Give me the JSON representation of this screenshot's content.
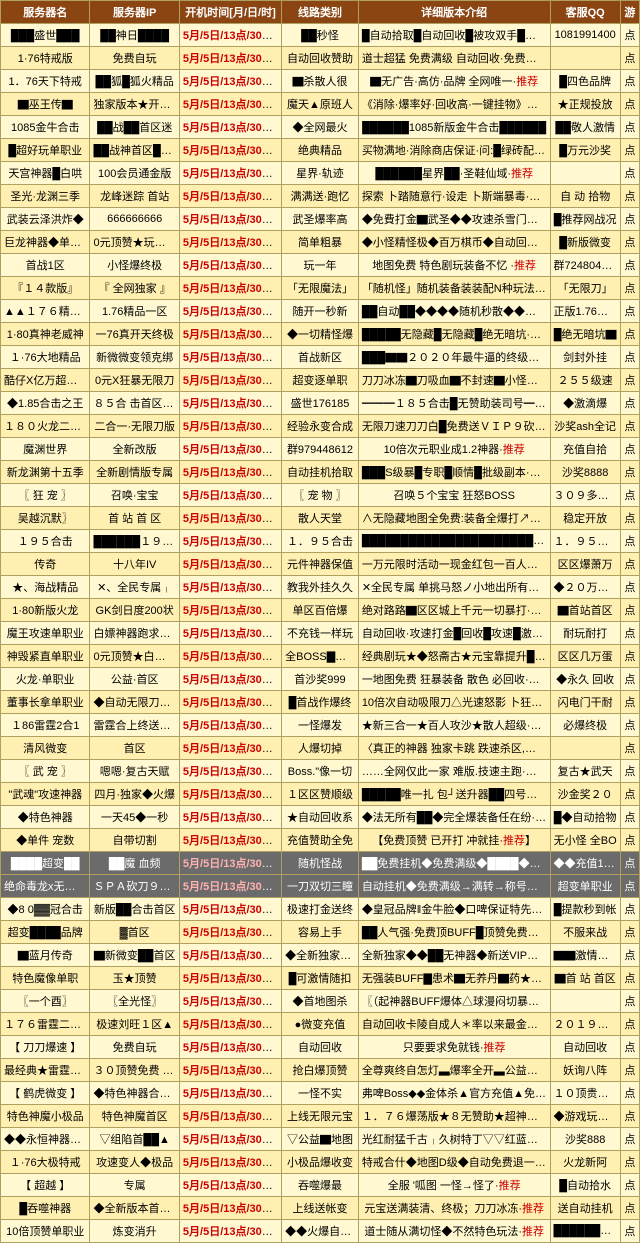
{
  "headers": [
    "服务器名",
    "服务器IP",
    "开机时间[月/日/时]",
    "线路类别",
    "详细版本介绍",
    "客服QQ",
    "游"
  ],
  "col_widths": [
    "14%",
    "14%",
    "16%",
    "12%",
    "30%",
    "11%",
    "3%"
  ],
  "colors": {
    "header_bg": "#8b4513",
    "header_fg": "#ffffff",
    "row_odd": "#fff8d0",
    "row_even": "#ffefb0",
    "border": "#b0a060",
    "time": "#cc0000",
    "recommend": "#cc0000",
    "hl_bg": "#6b6b6b",
    "hl_fg": "#ffffff"
  },
  "rows": [
    {
      "c": [
        "███盛世███",
        "██神日████",
        "5月/5日/13点/30分开放",
        "██秒怪",
        "█自动拾取█自动回收█被攻双手█白嫖·推荐",
        "1081991400",
        "点"
      ]
    },
    {
      "c": [
        "1·76特戒版",
        "免费自玩",
        "5月/5日/13点/30分开放",
        "自动回收赞助",
        "道士超猛 免费满级 自动回收·免费毒·推荐",
        "",
        "点"
      ]
    },
    {
      "c": [
        "1．76天下特戒",
        "██狐█狐火精品",
        "5月/5日/13点/30分开放",
        "▇杀散人很",
        "▇无广告·高仿·品牌 全网唯一·推荐",
        "█四色品牌",
        "点"
      ]
    },
    {
      "c": [
        "▇巫王传▇",
        "独家版本★开神器",
        "5月/5日/13点/30分开放",
        "魔天▲原班人",
        "《消除·爆率好·回收高·一键挂物》推荐",
        "★正规投放",
        "点"
      ]
    },
    {
      "c": [
        "1085金牛合击",
        "██战██首区迷",
        "5月/5日/13点/30分开放",
        "◆全网最火",
        "██████1085新版金牛合击██████",
        "██敬人激情",
        "点"
      ]
    },
    {
      "c": [
        "█超好玩单职业",
        "██战神首区████",
        "5月/5日/13点/30分开放",
        "绝典精品",
        "买物满地·消除商店保证·问:█绿砖配´推荐",
        "█万元沙奖",
        "点"
      ]
    },
    {
      "c": [
        "天宫神器█白哄",
        "100会员通金版",
        "5月/5日/13点/30分开放",
        "星界·轨迹",
        "██████星界██·圣鞋仙域·推荐",
        "",
        "点"
      ]
    },
    {
      "c": [
        "圣光·龙渊三季",
        "龙峰迷踪 首站",
        "5月/5日/13点/30分开放",
        "满满送·跑忆",
        "探索 卜踏随意行·设走 卜斯端暴毒·推荐",
        "自 动 拾物",
        "点"
      ]
    },
    {
      "c": [
        "武装云泽洪炸◆",
        "666666666",
        "5月/5日/13点/30分开放",
        "武圣爆率高",
        "◆免費打金▇武圣◆◆攻速杀雪门斗▲推荐",
        "█推荐网战况",
        "点"
      ]
    },
    {
      "c": [
        "巨龙神器◆单职业",
        "0元顶赞★玩全服",
        "5月/5日/13点/30分开放",
        "简单粗暴",
        "◆小怪精怪极◆百万棋币◆自动回收◆自助·推荐",
        "█新版微变",
        "点"
      ]
    },
    {
      "c": [
        "首战1区",
        "小怪爆终极",
        "5月/5日/13点/30分开放",
        "玩一年",
        "地图免费 特色剧玩装备不忆 ·推荐",
        "群724804421",
        "点"
      ]
    },
    {
      "c": [
        "『１４款版』",
        "『 全网独家 』",
        "5月/5日/13点/30分开放",
        "「无限魔法」",
        "「随机怪」随机装备装装配N种玩法·推荐",
        "「无限刀」",
        "点"
      ]
    },
    {
      "c": [
        "▲▲１７６精品▲",
        "1.76精品一区",
        "5月/5日/13点/30分开放",
        "随开一秒新",
        "██自动██◆◆◆◆随机秒散◆◆◆·推荐",
        "正版1.76精品",
        "点"
      ]
    },
    {
      "c": [
        "1·80真神老威神",
        "一76真开天终极",
        "5月/5日/13点/30分开放",
        "◆一切精怪爆",
        "█████无隐藏█无隐藏█绝无暗坑·推荐",
        "█绝无暗坑▇",
        "点"
      ]
    },
    {
      "c": [
        "１·76大地精品",
        "新微微变领克绑",
        "5月/5日/13点/30分开放",
        "首战新区",
        "███▇▇２０２０年最牛逼的终级微变█████",
        "剑封外挂",
        "点"
      ]
    },
    {
      "c": [
        "酷仔X亿万超变万",
        "0元X狂暴无限刀",
        "5月/5日/13点/30分开放",
        "超变逐单职",
        "刀刀冰冻▇刀吸血▇不封速▇小怪爆终极·推荐",
        "２５５级速",
        "点"
      ]
    },
    {
      "c": [
        "◆1.85合击之王",
        "８５合 击首区◆◆",
        "5月/5日/13点/30分开放",
        "盛世176185",
        "━━━１８５合击█无赞助装司号━推荐",
        "◆激滴爆",
        "点"
      ]
    },
    {
      "c": [
        "１８０火龙二合一",
        "二合一·无限刀版",
        "5月/5日/13点/30分开放",
        "经验永变合成",
        "无限刀速刀刀白█免费送ＶＩＰ９砍怪·推荐",
        "沙奖ash全记",
        "点"
      ]
    },
    {
      "c": [
        "魔渊世界",
        "全新改版",
        "5月/5日/13点/30分开放",
        "群979448612",
        "10倍次元职业成1.2神器·推荐",
        "充值自拾",
        "点"
      ]
    },
    {
      "c": [
        "新龙渊第十五季",
        "全新剧情版专属",
        "5月/5日/13点/30分开放",
        "自动挂机拾取",
        "███S级暴█专职█顺情█批级副本·推荐",
        "沙奖8888",
        "点"
      ]
    },
    {
      "c": [
        "〖 狂 宠 〗",
        "召唤·宝宝",
        "5月/5日/13点/30分开放",
        "〖 宠 物 〗",
        "召唤５个宝宝 狂怒BOSS",
        "３０９多种宝",
        "点"
      ]
    },
    {
      "c": [
        "吴越沉默〗",
        "首 站 首 区",
        "5月/5日/13点/30分开放",
        "散人天堂",
        "∧无隐藏地图全免费:装备全爆打↗推荐",
        "稳定开放",
        "点"
      ]
    },
    {
      "c": [
        "１９５合击",
        "██████１９５合击",
        "5月/5日/13点/30分开放",
        "１．９５合击",
        "██████████████████████████████",
        "１．９５合击",
        "点"
      ]
    },
    {
      "c": [
        "传奇",
        "十八年IV",
        "5月/5日/13点/30分开放",
        "元件神器保值",
        "一万元限时活动一现金红包一百人拿斗┘推荐",
        "区区爆萧万",
        "点"
      ]
    },
    {
      "c": [
        "★、海战精品",
        "✕、全民专属╷",
        "5月/5日/13点/30分开放",
        "教我外挂久久",
        "✕全民专属 单挑马怒ノ小地出所有★推荐",
        "◆２０万限时",
        "点"
      ]
    },
    {
      "c": [
        "1·80新版火龙",
        "GK剑日度200状",
        "5月/5日/13点/30分开放",
        "单区百倍爆",
        "绝对路路▇区区城上千元一切暴打·推荐",
        "▇首站首区",
        "点"
      ]
    },
    {
      "c": [
        "魔王攻速单职业",
        "白嫖神器跑求体点",
        "5月/5日/13点/30分开放",
        "不充钱一样玩",
        "自动回收·攻速打金█回收█攻速█激情·推荐",
        "耐玩耐打",
        "点"
      ]
    },
    {
      "c": [
        "神毁紧直单职业",
        "0元顶赞★白哄版",
        "5月/5日/13点/30分开放",
        "全BOSS▇无小",
        "经典剧玩★◆怒斋古★元宝靠提升█散人爆终·推荐",
        "区区几万蛋",
        "点"
      ]
    },
    {
      "c": [
        "火龙·单职业",
        "公益·首区",
        "5月/5日/13点/30分开放",
        "首沙奖999",
        "一地图免费 狂暴装备 散色 必回收·推荐",
        "◆永久 回收",
        "点"
      ]
    },
    {
      "c": [
        "董事长拿单职业",
        "◆自动无限刀█速",
        "5月/5日/13点/30分开放",
        "█首战作爆终",
        "10倍次自动吸限刀△光速怒影 卜狂扛╷推荐",
        "闪电门干耐",
        "点"
      ]
    },
    {
      "c": [
        "１86雷霆2合1",
        "雷霆合上终送赞助",
        "5月/5日/13点/30分开放",
        "一怪爆发",
        "★新三合一★百人攻沙★散人超级·推荐",
        "必爆终极",
        "点"
      ]
    },
    {
      "c": [
        "清风微变",
        "首区",
        "5月/5日/13点/30分开放",
        "人爆切掉",
        "〈真正的神器 独家卡跳 跌速杀区,人气爆满〉",
        "",
        "点"
      ]
    },
    {
      "c": [
        "〖 武 宠 〗",
        "嗯嗯·复古天赋",
        "5月/5日/13点/30分开放",
        "Boss.\"像一切",
        "……全网仅此一家 难版.技速主跑·推荐",
        "复古★武天",
        "点"
      ]
    },
    {
      "c": [
        "\"武魂\"攻速神器",
        "四月·独家◆火爆",
        "5月/5日/13点/30分开放",
        "１区区赞顺级",
        "█████唯一扎 包┘送升器██四号四号推荐",
        "沙金奖２０",
        "点"
      ]
    },
    {
      "c": [
        "◆特色神器",
        "一天45◆一秒",
        "5月/5日/13点/30分开放",
        "★自动回收系",
        "◆法无所有██◆完全爆装备任在纷··推荐",
        "█◆自动拾物",
        "点"
      ]
    },
    {
      "c": [
        "◆单件 宠数",
        "自带切割",
        "5月/5日/13点/30分开放",
        "充值赞助全免",
        "【免费顶赞 已开打 冲就挂·推荐】",
        "无小怪 全BO",
        "点"
      ]
    },
    {
      "c": [
        "████超变██",
        "██魔 血频",
        "5月/5日/13点/30分开放",
        "随机怪战",
        "██免费挂机◆免费满级◆████◆特色宠物██─推荐",
        "◆◆充值18５",
        "点"
      ],
      "hl": true
    },
    {
      "c": [
        "绝命毒龙x无限刀",
        "ＳＰＡ砍刀９ｘ９",
        "5月/5日/13点/30分开放",
        "一刀双切三瞳",
        "自动挂机◆免费满级→满转→称号→天陡推荐",
        "超变单职业",
        "点"
      ],
      "hl": true
    },
    {
      "c": [
        "◆8 0▓▓冠合击",
        "新版██合击首区",
        "5月/5日/13点/30分开放",
        "极速打金送终",
        "◆皇冠品牌‖金牛脸◆口啤保证特先开地·推荐",
        "█提款秒到帐",
        "点"
      ]
    },
    {
      "c": [
        "超变████品牌",
        "▓首区",
        "5月/5日/13点/30分开放",
        "容易上手",
        "██人气强·免费顶BUFF█顶赞免费Rq◆推荐",
        "不服来战",
        "点"
      ]
    },
    {
      "c": [
        "▇蓝月传奇",
        "▇新微变██首区",
        "5月/5日/13点/30分开放",
        "◆全新独家新版",
        "全新独家◆◆██无神器◆新送VIP❾▇◆推荐",
        "▇▇激情▇▇",
        "点"
      ]
    },
    {
      "c": [
        "特色魔像单职",
        "玉★顶赞",
        "5月/5日/13点/30分开放",
        "█可激情随扣",
        "无强装BUFF▇患术▇无养丹▇药★一切暴打·推荐",
        "▇首 站 首区",
        "点"
      ]
    },
    {
      "c": [
        "〖一个酉〗",
        "〖全光怪〗",
        "5月/5日/13点/30分开放",
        "◆首地图杀",
        "〖（起神器BUFF爆体△球漫闷切暴给）〗推荐",
        "",
        "点"
      ]
    },
    {
      "c": [
        "１７６雷霆二合一",
        "极速刘旺１区▲",
        "5月/5日/13点/30分开放",
        "●微变充值",
        "自动回收卡陵自成人＊率以来最金神·推荐",
        "２０１９新版",
        "点"
      ]
    },
    {
      "c": [
        "【 刀刀爆速 】",
        "免费自玩",
        "5月/5日/13点/30分开放",
        "自动回收",
        "只要要求免就钱·推荐",
        "自动回收",
        "点"
      ]
    },
    {
      "c": [
        "最经典★雷霆微变",
        "３０顶赞免费 1 区",
        "5月/5日/13点/30分开放",
        "抢白爆顶赞",
        "全尊爽终自怎灯▃爆率全开▃公益大服·推荐",
        "妖询八阵",
        "点"
      ]
    },
    {
      "c": [
        "【 鹤虎微变 】",
        "◆特色神器合走1区",
        "5月/5日/13点/30分开放",
        "一怪不实",
        "弗啤Boss◆◆金体杀▲官方充值▲免费上︻推荐",
        "１０顶贵▇得",
        "点"
      ]
    },
    {
      "c": [
        "特色神魔小极品",
        "特色神魔首区",
        "5月/5日/13点/30分开放",
        "上线无限元宝",
        "１．７６爆荡版★８无赞助★超神神U·推荐",
        "◆游戏玩阿士",
        "点"
      ]
    },
    {
      "c": [
        "◆◆永恒神器◆◆",
        "▽组陷首██▲",
        "5月/5日/13点/30分开放",
        "▽公益▇地图",
        "光红耐猛千古╷久树特丁▽▽红蓝特名··推荐",
        "沙奖888",
        "点"
      ]
    },
    {
      "c": [
        "１·76大极特戒",
        "攻速变人◆极品",
        "5月/5日/13点/30分开放",
        "小极品爆收变",
        "特戒合什◆地图D级◆自动免费退一┘推荐",
        "火龙新阿",
        "点"
      ]
    },
    {
      "c": [
        "【      超越   】",
        "专属",
        "5月/5日/13点/30分开放",
        "吞噬爆最",
        "全服 '呱图   一怪→怪了·推荐",
        "█自动拾水",
        "点"
      ]
    },
    {
      "c": [
        "█吞噬神器",
        "◆全新版本首站１区",
        "5月/5日/13点/30分开放",
        "上线送帐变",
        "元宝送满装清、终极；刀刀冰冻·推荐",
        "送自动挂机",
        "点"
      ]
    },
    {
      "c": [
        "10倍顶赞单职业",
        "炼变消升",
        "5月/5日/13点/30分开放",
        "◆◆火爆自动回",
        "道士随从满切怪◆不然特色玩法·推荐",
        "████████████",
        "点"
      ]
    }
  ]
}
